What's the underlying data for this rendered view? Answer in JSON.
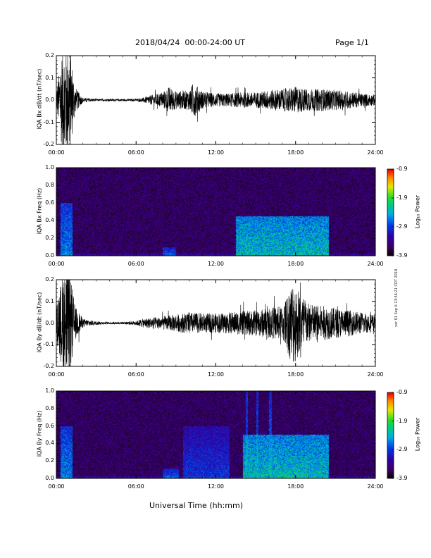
{
  "header": {
    "title": "2018/04/24  00:00-24:00 UT",
    "page": "Page 1/1"
  },
  "xaxis": {
    "ticks": [
      "00:00",
      "06:00",
      "12:00",
      "18:00",
      "24:00"
    ],
    "label": "Universal Time (hh:mm)"
  },
  "colorbar": {
    "ticks": [
      "-0.9",
      "-1.9",
      "-2.9",
      "-3.9"
    ],
    "label": "Log₁₀ Power"
  },
  "side_note": "ver 01 Sep 6 13:56:21 CDT 2018",
  "chart_data": [
    {
      "type": "line",
      "title": "",
      "ylabel": "IQA Bx dB/dt (nT/sec)",
      "xlabel": "Universal Time (hh:mm)",
      "xlim": [
        0,
        24
      ],
      "ylim": [
        -0.2,
        0.2
      ],
      "yticks": [
        "0.2",
        "0.1",
        "0.0",
        "-0.1",
        "-0.2"
      ],
      "amplitude_profile": {
        "hours": [
          0,
          0.5,
          1,
          1.4,
          2,
          3,
          4,
          5,
          6,
          6.5,
          7,
          8,
          8.5,
          9,
          10,
          10.3,
          11,
          12,
          13,
          14,
          15,
          16,
          17,
          18,
          19,
          20,
          21,
          22,
          23,
          24
        ],
        "amplitude": [
          0.04,
          0.25,
          0.25,
          0.06,
          0.01,
          0.005,
          0.005,
          0.005,
          0.005,
          0.01,
          0.02,
          0.035,
          0.06,
          0.04,
          0.045,
          0.08,
          0.04,
          0.03,
          0.03,
          0.035,
          0.035,
          0.045,
          0.05,
          0.06,
          0.05,
          0.05,
          0.045,
          0.04,
          0.03,
          0.025
        ]
      }
    },
    {
      "type": "heatmap",
      "title": "",
      "ylabel": "IQA Bx Freq (Hz)",
      "xlabel": "Universal Time (hh:mm)",
      "xlim": [
        0,
        24
      ],
      "ylim": [
        0.0,
        1.0
      ],
      "yticks": [
        "1.0",
        "0.8",
        "0.6",
        "0.4",
        "0.2",
        "0.0"
      ],
      "zlim": [
        -3.9,
        -0.9
      ],
      "features": [
        {
          "hour_start": 0.3,
          "hour_end": 1.2,
          "freq_max": 0.6,
          "level": -2.7
        },
        {
          "hour_start": 8.0,
          "hour_end": 9.0,
          "freq_max": 0.1,
          "level": -2.9
        },
        {
          "hour_start": 13.5,
          "hour_end": 20.5,
          "freq_max": 0.45,
          "level": -2.3
        }
      ]
    },
    {
      "type": "line",
      "title": "",
      "ylabel": "IQA By dB/dt (nT/sec)",
      "xlabel": "Universal Time (hh:mm)",
      "xlim": [
        0,
        24
      ],
      "ylim": [
        -0.2,
        0.2
      ],
      "yticks": [
        "0.2",
        "0.1",
        "0.0",
        "-0.1",
        "-0.2"
      ],
      "amplitude_profile": {
        "hours": [
          0,
          0.5,
          1,
          1.4,
          2,
          3,
          4,
          5,
          6,
          6.5,
          7,
          8,
          9,
          10,
          11,
          12,
          13,
          14,
          15,
          16,
          17,
          17.8,
          18.3,
          19,
          20,
          21,
          22,
          23,
          24
        ],
        "amplitude": [
          0.06,
          0.25,
          0.25,
          0.08,
          0.02,
          0.008,
          0.005,
          0.005,
          0.01,
          0.02,
          0.025,
          0.03,
          0.04,
          0.05,
          0.045,
          0.045,
          0.05,
          0.055,
          0.06,
          0.07,
          0.08,
          0.2,
          0.15,
          0.09,
          0.08,
          0.07,
          0.06,
          0.05,
          0.04
        ]
      }
    },
    {
      "type": "heatmap",
      "title": "",
      "ylabel": "IQA By Freq (Hz)",
      "xlabel": "Universal Time (hh:mm)",
      "xlim": [
        0,
        24
      ],
      "ylim": [
        0.0,
        1.0
      ],
      "yticks": [
        "1.0",
        "0.8",
        "0.6",
        "0.4",
        "0.2",
        "0.0"
      ],
      "zlim": [
        -3.9,
        -0.9
      ],
      "features": [
        {
          "hour_start": 0.3,
          "hour_end": 1.2,
          "freq_max": 0.6,
          "level": -2.7
        },
        {
          "hour_start": 8.0,
          "hour_end": 9.2,
          "freq_max": 0.12,
          "level": -2.9
        },
        {
          "hour_start": 9.5,
          "hour_end": 13.0,
          "freq_max": 0.6,
          "level": -3.1
        },
        {
          "hour_start": 14.0,
          "hour_end": 20.5,
          "freq_max": 0.5,
          "level": -2.3
        },
        {
          "hour_start": 14.2,
          "hour_end": 14.4,
          "freq_max": 1.0,
          "level": -2.8
        },
        {
          "hour_start": 15.0,
          "hour_end": 15.2,
          "freq_max": 1.0,
          "level": -2.8
        },
        {
          "hour_start": 16.0,
          "hour_end": 16.2,
          "freq_max": 1.0,
          "level": -2.8
        }
      ]
    }
  ]
}
